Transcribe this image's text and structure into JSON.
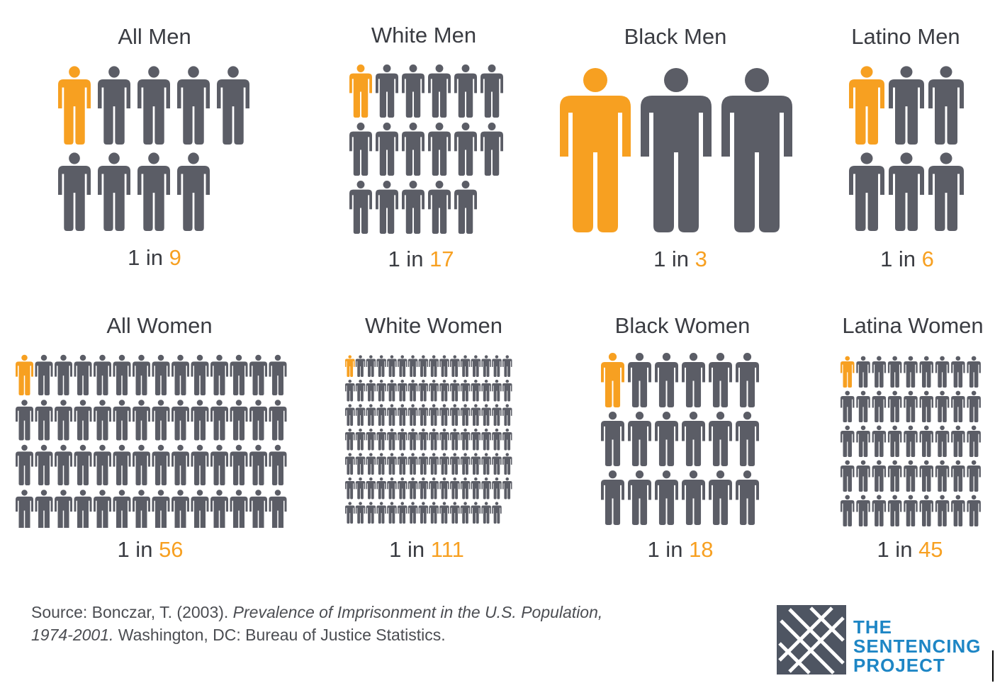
{
  "chart_data": {
    "type": "pictogram",
    "title": "",
    "unit": "people",
    "colors": {
      "highlight": "#f7a021",
      "figure": "#5b5d66",
      "text": "#3a3c42"
    },
    "panels": [
      {
        "title": "All Men",
        "ratio_prefix": "1 in",
        "denominator": "9",
        "value": 9,
        "cols": 5
      },
      {
        "title": "White Men",
        "ratio_prefix": "1 in",
        "denominator": "17",
        "value": 17,
        "cols": 6
      },
      {
        "title": "Black Men",
        "ratio_prefix": "1 in",
        "denominator": "3",
        "value": 3,
        "cols": 3
      },
      {
        "title": "Latino Men",
        "ratio_prefix": "1 in",
        "denominator": "6",
        "value": 6,
        "cols": 3
      },
      {
        "title": "All Women",
        "ratio_prefix": "1 in",
        "denominator": "56",
        "value": 56,
        "cols": 14
      },
      {
        "title": "White Women",
        "ratio_prefix": "1 in",
        "denominator": "111",
        "value": 111,
        "cols": 16
      },
      {
        "title": "Black Women",
        "ratio_prefix": "1 in",
        "denominator": "18",
        "value": 18,
        "cols": 6
      },
      {
        "title": "Latina Women",
        "ratio_prefix": "1 in",
        "denominator": "45",
        "value": 45,
        "cols": 9
      }
    ]
  },
  "source": {
    "prefix": "Source: Bonczar, T. (2003). ",
    "title_line1": "Prevalence of Imprisonment in the U.S. Population,",
    "title_line2": "1974-2001.",
    "suffix": " Washington, DC: Bureau of Justice Statistics."
  },
  "logo": {
    "line1": "THE",
    "line2": "SENTENCING",
    "line3": "PROJECT",
    "colors": {
      "text": "#1e86c5",
      "mark": "#4e5562"
    }
  }
}
